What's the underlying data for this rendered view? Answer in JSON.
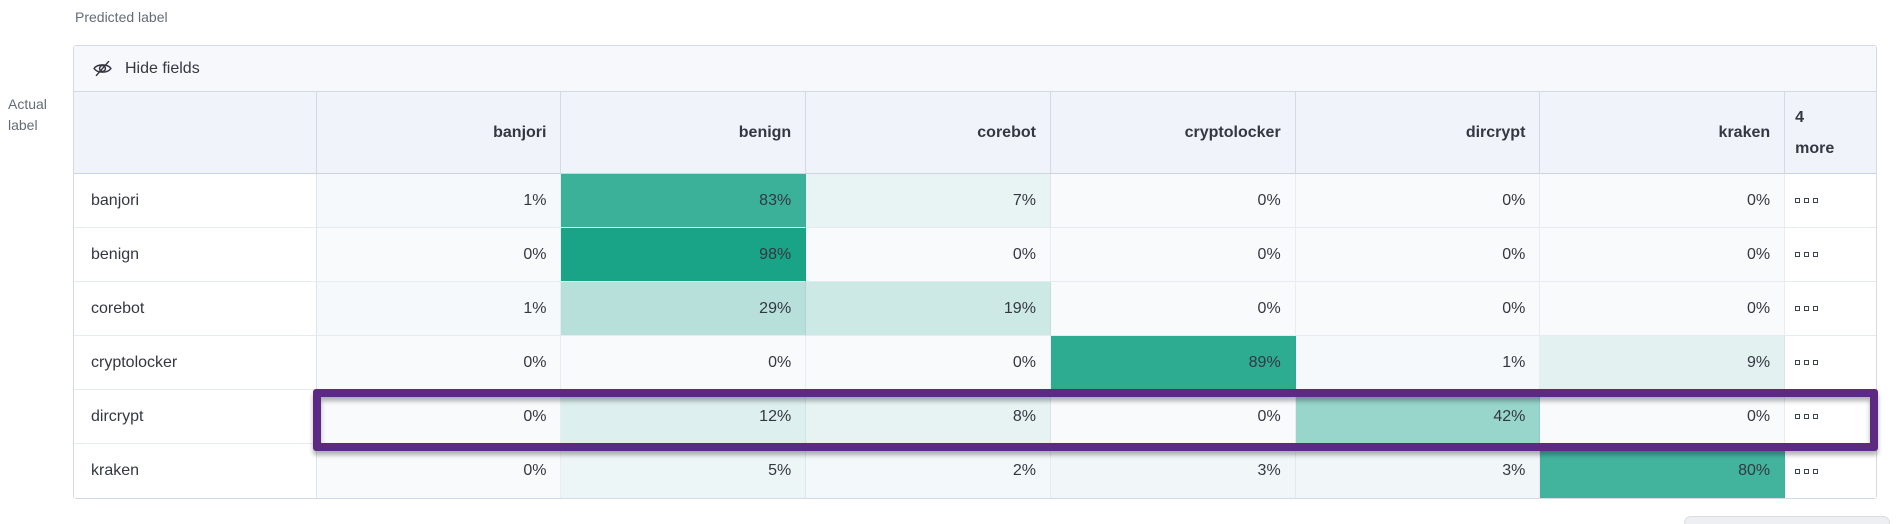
{
  "axis": {
    "predicted": "Predicted label",
    "actual_line1": "Actual",
    "actual_line2": "label"
  },
  "toolbar": {
    "hide_fields_label": "Hide fields"
  },
  "matrix": {
    "columns": [
      "banjori",
      "benign",
      "corebot",
      "cryptolocker",
      "dircrypt",
      "kraken"
    ],
    "more_column": {
      "line1": "4",
      "line2": "more"
    },
    "value_suffix": "%",
    "rows": [
      {
        "label": "banjori",
        "values": [
          1,
          83,
          7,
          0,
          0,
          0
        ],
        "highlighted": false
      },
      {
        "label": "benign",
        "values": [
          0,
          98,
          0,
          0,
          0,
          0
        ],
        "highlighted": false
      },
      {
        "label": "corebot",
        "values": [
          1,
          29,
          19,
          0,
          0,
          0
        ],
        "highlighted": false
      },
      {
        "label": "cryptolocker",
        "values": [
          0,
          0,
          0,
          89,
          1,
          9
        ],
        "highlighted": false
      },
      {
        "label": "dircrypt",
        "values": [
          0,
          12,
          8,
          0,
          42,
          0
        ],
        "highlighted": true
      },
      {
        "label": "kraken",
        "values": [
          0,
          5,
          2,
          3,
          3,
          80
        ],
        "highlighted": false
      }
    ],
    "more_actions_icon": "boxes-horizontal-icon"
  },
  "colors": {
    "heat_base": "#14a285",
    "heat_background": "#f8fafc",
    "highlight_border": "#5c2983",
    "text": "#343741"
  }
}
